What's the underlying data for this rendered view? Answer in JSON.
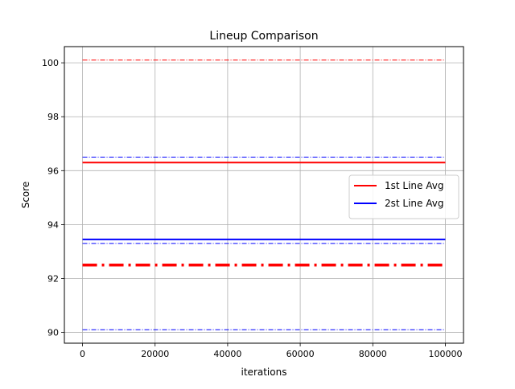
{
  "chart_data": {
    "type": "line",
    "title": "Lineup Comparison",
    "xlabel": "iterations",
    "ylabel": "Score",
    "xlim": [
      -5000,
      105000
    ],
    "ylim": [
      89.6,
      100.6
    ],
    "xticks": [
      0,
      20000,
      40000,
      60000,
      80000,
      100000
    ],
    "xtick_labels": [
      "0",
      "20000",
      "40000",
      "60000",
      "80000",
      "100000"
    ],
    "yticks": [
      90,
      92,
      94,
      96,
      98,
      100
    ],
    "ytick_labels": [
      "90",
      "92",
      "94",
      "96",
      "98",
      "100"
    ],
    "grid": true,
    "legend": {
      "placement": "center-right"
    },
    "x": [
      0,
      100000
    ],
    "series": [
      {
        "name": "1st Line Avg",
        "color": "#ff0000",
        "style": "solid",
        "weight": "medium",
        "values": [
          96.3,
          96.3
        ],
        "legend": true
      },
      {
        "name": "2st Line Avg",
        "color": "#0000ff",
        "style": "solid",
        "weight": "medium",
        "values": [
          93.45,
          93.45
        ],
        "legend": true
      },
      {
        "color": "#ff0000",
        "style": "dashdot",
        "weight": "thin",
        "values": [
          100.1,
          100.1
        ],
        "legend": false
      },
      {
        "color": "#ff0000",
        "style": "dashdot",
        "weight": "thick",
        "values": [
          92.5,
          92.5
        ],
        "legend": false
      },
      {
        "color": "#0000ff",
        "style": "dashdot",
        "weight": "thin",
        "values": [
          96.5,
          96.5
        ],
        "legend": false
      },
      {
        "color": "#0000ff",
        "style": "dashdot",
        "weight": "thin",
        "values": [
          93.3,
          93.3
        ],
        "legend": false
      },
      {
        "color": "#0000ff",
        "style": "dashdot",
        "weight": "thin",
        "values": [
          90.1,
          90.1
        ],
        "legend": false
      }
    ]
  }
}
